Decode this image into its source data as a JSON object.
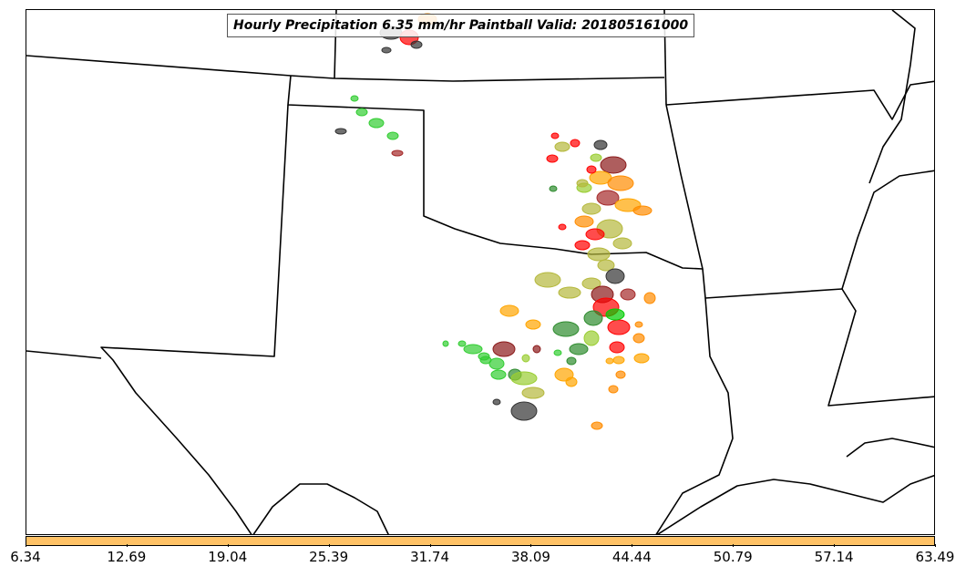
{
  "title": "Hourly Precipitation 6.35 mm/hr Paintball Valid: 201805161000",
  "colorbar": {
    "color": "#ffc266",
    "ticks": [
      "6.34",
      "12.69",
      "19.04",
      "25.39",
      "31.74",
      "38.09",
      "44.44",
      "50.79",
      "57.14",
      "63.49"
    ]
  },
  "paint_colors": [
    "#ff0000",
    "#ff8c00",
    "#ffa500",
    "#9acd32",
    "#b5b83c",
    "#2e8b2e",
    "#32cd32",
    "#00cc00",
    "#8b1a1a",
    "#a52a2a",
    "#333333"
  ]
}
